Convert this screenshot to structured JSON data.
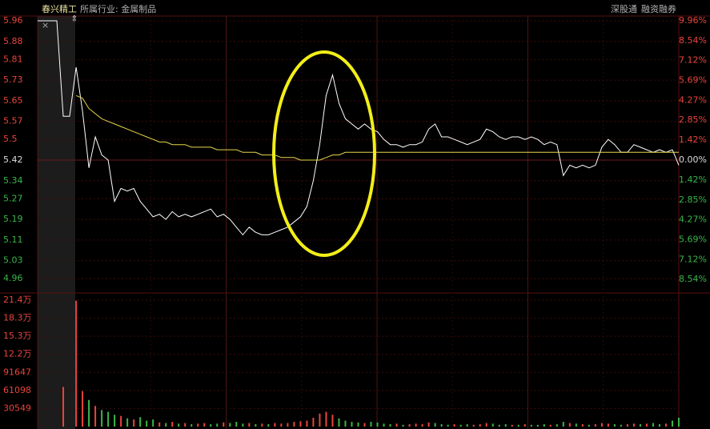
{
  "header": {
    "stock": "春兴精工",
    "industry": "所属行业:  金属制品",
    "tags": [
      "深股通",
      "融资融券"
    ]
  },
  "chart_data": [
    {
      "type": "line",
      "ylim": [
        4.88,
        5.96
      ],
      "yticks": [
        5.96,
        5.88,
        5.81,
        5.73,
        5.65,
        5.57,
        5.5,
        5.42,
        5.34,
        5.27,
        5.19,
        5.11,
        5.03,
        4.96
      ],
      "y2lim": [
        -9.96,
        9.96
      ],
      "y2ticks": [
        {
          "value": 9.96,
          "label": "9.96%"
        },
        {
          "value": 8.54,
          "label": "8.54%"
        },
        {
          "value": 7.12,
          "label": "7.12%"
        },
        {
          "value": 5.69,
          "label": "5.69%"
        },
        {
          "value": 4.27,
          "label": "4.27%"
        },
        {
          "value": 2.85,
          "label": "2.85%"
        },
        {
          "value": 1.42,
          "label": "1.42%"
        },
        {
          "value": 0,
          "label": "0.00%"
        },
        {
          "value": -1.42,
          "label": "1.42%"
        },
        {
          "value": -2.85,
          "label": "2.85%"
        },
        {
          "value": -4.27,
          "label": "4.27%"
        },
        {
          "value": -5.69,
          "label": "5.69%"
        },
        {
          "value": -7.12,
          "label": "7.12%"
        },
        {
          "value": -8.54,
          "label": "8.54%"
        }
      ],
      "grid": true,
      "series": [
        {
          "color": "#ffffff",
          "values": [
            5.96,
            5.96,
            5.96,
            5.96,
            5.59,
            5.59,
            5.78,
            5.61,
            5.39,
            5.51,
            5.44,
            5.42,
            5.26,
            5.31,
            5.3,
            5.31,
            5.26,
            5.23,
            5.2,
            5.21,
            5.19,
            5.22,
            5.2,
            5.21,
            5.2,
            5.21,
            5.22,
            5.23,
            5.2,
            5.21,
            5.19,
            5.16,
            5.13,
            5.16,
            5.14,
            5.13,
            5.13,
            5.14,
            5.15,
            5.16,
            5.18,
            5.2,
            5.24,
            5.34,
            5.48,
            5.67,
            5.75,
            5.64,
            5.58,
            5.56,
            5.54,
            5.56,
            5.54,
            5.53,
            5.5,
            5.48,
            5.48,
            5.47,
            5.48,
            5.48,
            5.49,
            5.54,
            5.56,
            5.51,
            5.51,
            5.5,
            5.49,
            5.48,
            5.49,
            5.5,
            5.54,
            5.53,
            5.51,
            5.5,
            5.51,
            5.51,
            5.5,
            5.51,
            5.5,
            5.48,
            5.49,
            5.48,
            5.36,
            5.4,
            5.39,
            5.4,
            5.39,
            5.4,
            5.47,
            5.5,
            5.48,
            5.45,
            5.45,
            5.48,
            5.47,
            5.46,
            5.45,
            5.46,
            5.45,
            5.46,
            5.4
          ]
        },
        {
          "color": "#e6d84a",
          "values": [
            null,
            null,
            null,
            null,
            null,
            null,
            5.67,
            5.66,
            5.62,
            5.6,
            5.58,
            5.57,
            5.56,
            5.55,
            5.54,
            5.53,
            5.52,
            5.51,
            5.5,
            5.49,
            5.49,
            5.48,
            5.48,
            5.48,
            5.47,
            5.47,
            5.47,
            5.47,
            5.46,
            5.46,
            5.46,
            5.46,
            5.45,
            5.45,
            5.45,
            5.44,
            5.44,
            5.44,
            5.43,
            5.43,
            5.43,
            5.42,
            5.42,
            5.42,
            5.42,
            5.43,
            5.44,
            5.44,
            5.45,
            5.45,
            5.45,
            5.45,
            5.45,
            5.45,
            5.45,
            5.45,
            5.45,
            5.45,
            5.45,
            5.45,
            5.45,
            5.45,
            5.45,
            5.45,
            5.45,
            5.45,
            5.45,
            5.45,
            5.45,
            5.45,
            5.45,
            5.45,
            5.45,
            5.45,
            5.45,
            5.45,
            5.45,
            5.45,
            5.45,
            5.45,
            5.45,
            5.45,
            5.45,
            5.45,
            5.45,
            5.45,
            5.45,
            5.45,
            5.45,
            5.45,
            5.45,
            5.45,
            5.45,
            5.45,
            5.45,
            5.45,
            5.45,
            5.45,
            5.45,
            5.45,
            5.45
          ]
        }
      ]
    },
    {
      "type": "bar",
      "ylim": [
        0,
        213843
      ],
      "yticks": [
        {
          "value": 213843,
          "label": "21.4万"
        },
        {
          "value": 183294,
          "label": "18.3万"
        },
        {
          "value": 152745,
          "label": "15.3万"
        },
        {
          "value": 122196,
          "label": "12.2万"
        },
        91647,
        61098,
        30549
      ],
      "grid": true,
      "values": [
        0,
        0,
        0,
        0,
        67000,
        0,
        213000,
        60000,
        45000,
        35000,
        28000,
        25000,
        20000,
        18000,
        14000,
        12000,
        16000,
        10000,
        12000,
        7000,
        6000,
        8000,
        5000,
        6000,
        4000,
        5000,
        6000,
        4000,
        5000,
        7000,
        6000,
        8000,
        5000,
        6000,
        4000,
        5000,
        4000,
        6000,
        5000,
        6000,
        8000,
        9000,
        10000,
        15000,
        22000,
        25000,
        20000,
        14000,
        10000,
        8000,
        7000,
        6000,
        8000,
        7000,
        5000,
        4000,
        5000,
        3000,
        4000,
        5000,
        4000,
        7000,
        6000,
        4000,
        3000,
        4000,
        3000,
        4000,
        3000,
        4000,
        6000,
        5000,
        3000,
        4000,
        3000,
        3000,
        4000,
        3000,
        3000,
        4000,
        3000,
        4000,
        8000,
        6000,
        5000,
        4000,
        3000,
        4000,
        6000,
        5000,
        4000,
        3000,
        4000,
        5000,
        4000,
        5000,
        6000,
        4000,
        5000,
        10000,
        15000
      ],
      "colors": [
        "#e8453c",
        "#e8453c",
        "#e8453c",
        "#e8453c",
        "#e8453c",
        "#e8453c",
        "#e8453c",
        "#e8453c",
        "#3ab54a",
        "#e8453c",
        "#3ab54a",
        "#3ab54a",
        "#3ab54a",
        "#e8453c",
        "#3ab54a",
        "#e8453c",
        "#3ab54a",
        "#3ab54a",
        "#3ab54a",
        "#e8453c",
        "#3ab54a",
        "#e8453c",
        "#3ab54a",
        "#e8453c",
        "#3ab54a",
        "#e8453c",
        "#e8453c",
        "#3ab54a",
        "#3ab54a",
        "#e8453c",
        "#3ab54a",
        "#3ab54a",
        "#3ab54a",
        "#e8453c",
        "#3ab54a",
        "#e8453c",
        "#3ab54a",
        "#e8453c",
        "#e8453c",
        "#e8453c",
        "#e8453c",
        "#e8453c",
        "#e8453c",
        "#e8453c",
        "#e8453c",
        "#e8453c",
        "#e8453c",
        "#3ab54a",
        "#3ab54a",
        "#3ab54a",
        "#3ab54a",
        "#e8453c",
        "#3ab54a",
        "#3ab54a",
        "#3ab54a",
        "#3ab54a",
        "#e8453c",
        "#3ab54a",
        "#e8453c",
        "#e8453c",
        "#e8453c",
        "#e8453c",
        "#3ab54a",
        "#3ab54a",
        "#3ab54a",
        "#e8453c",
        "#3ab54a",
        "#3ab54a",
        "#e8453c",
        "#e8453c",
        "#e8453c",
        "#3ab54a",
        "#3ab54a",
        "#3ab54a",
        "#e8453c",
        "#3ab54a",
        "#e8453c",
        "#3ab54a",
        "#3ab54a",
        "#3ab54a",
        "#e8453c",
        "#3ab54a",
        "#3ab54a",
        "#e8453c",
        "#3ab54a",
        "#e8453c",
        "#3ab54a",
        "#e8453c",
        "#e8453c",
        "#e8453c",
        "#3ab54a",
        "#3ab54a",
        "#e8453c",
        "#e8453c",
        "#3ab54a",
        "#e8453c",
        "#3ab54a",
        "#3ab54a",
        "#e8453c",
        "#3ab54a",
        "#3ab54a"
      ]
    }
  ]
}
